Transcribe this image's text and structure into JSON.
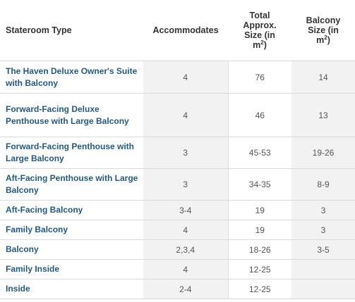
{
  "table": {
    "headers": {
      "stateroom_type": "Stateroom Type",
      "accommodates": "Accommodates",
      "total_size": [
        "Total",
        "Approx.",
        "Size (in",
        "m"
      ],
      "total_size_sup": "2",
      "total_size_close": ")",
      "balcony_size": [
        "Balcony",
        "Size (in",
        "m"
      ],
      "balcony_size_sup": "2",
      "balcony_size_close": ")"
    },
    "rows": [
      {
        "name": "The Haven Deluxe Owner's Suite with Balcony",
        "accommodates": "4",
        "total": "76",
        "balcony": "14"
      },
      {
        "name": "Forward-Facing Deluxe Penthouse with Large Balcony",
        "accommodates": "4",
        "total": "46",
        "balcony": "13"
      },
      {
        "name": "Forward-Facing Penthouse with Large Balcony",
        "accommodates": "3",
        "total": "45-53",
        "balcony": "19-26"
      },
      {
        "name": "Aft-Facing Penthouse with Large Balcony",
        "accommodates": "3",
        "total": "34-35",
        "balcony": "8-9"
      },
      {
        "name": "Aft-Facing Balcony",
        "accommodates": "3-4",
        "total": "19",
        "balcony": "3"
      },
      {
        "name": "Family Balcony",
        "accommodates": "4",
        "total": "19",
        "balcony": "3"
      },
      {
        "name": "Balcony",
        "accommodates": "2,3,4",
        "total": "18-26",
        "balcony": "3-5"
      },
      {
        "name": "Family Inside",
        "accommodates": "4",
        "total": "12-25",
        "balcony": ""
      },
      {
        "name": "Inside",
        "accommodates": "2-4",
        "total": "12-25",
        "balcony": ""
      }
    ]
  }
}
